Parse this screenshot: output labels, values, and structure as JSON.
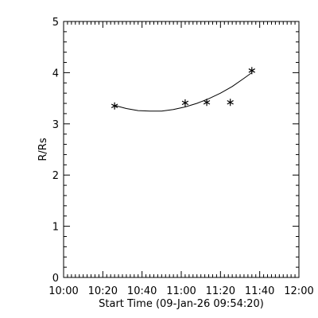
{
  "chart_data": {
    "type": "scatter",
    "xlabel": "Start Time (09-Jan-26 09:54:20)",
    "ylabel": "R/Rs",
    "xlim": [
      "10:00",
      "12:00"
    ],
    "ylim": [
      0,
      5
    ],
    "x_ticks": [
      "10:00",
      "10:20",
      "10:40",
      "11:00",
      "11:20",
      "11:40",
      "12:00"
    ],
    "y_ticks": [
      "0",
      "1",
      "2",
      "3",
      "4",
      "5"
    ],
    "grid": false,
    "marker": "asterisk",
    "series": [
      {
        "x": [
          "10:26",
          "11:02",
          "11:13",
          "11:25",
          "11:36"
        ],
        "y": [
          3.35,
          3.41,
          3.42,
          3.42,
          4.04
        ]
      }
    ],
    "fit_curve": {
      "type": "quadratic",
      "x": [
        "10:26",
        "10:32",
        "10:38",
        "10:44",
        "10:50",
        "10:56",
        "11:02",
        "11:08",
        "11:14",
        "11:20",
        "11:26",
        "11:32",
        "11:36"
      ],
      "y": [
        3.36,
        3.3,
        3.26,
        3.25,
        3.25,
        3.28,
        3.33,
        3.4,
        3.49,
        3.6,
        3.73,
        3.89,
        4.0
      ]
    },
    "colors": {
      "background": "#ffffff",
      "foreground": "#000000"
    }
  }
}
